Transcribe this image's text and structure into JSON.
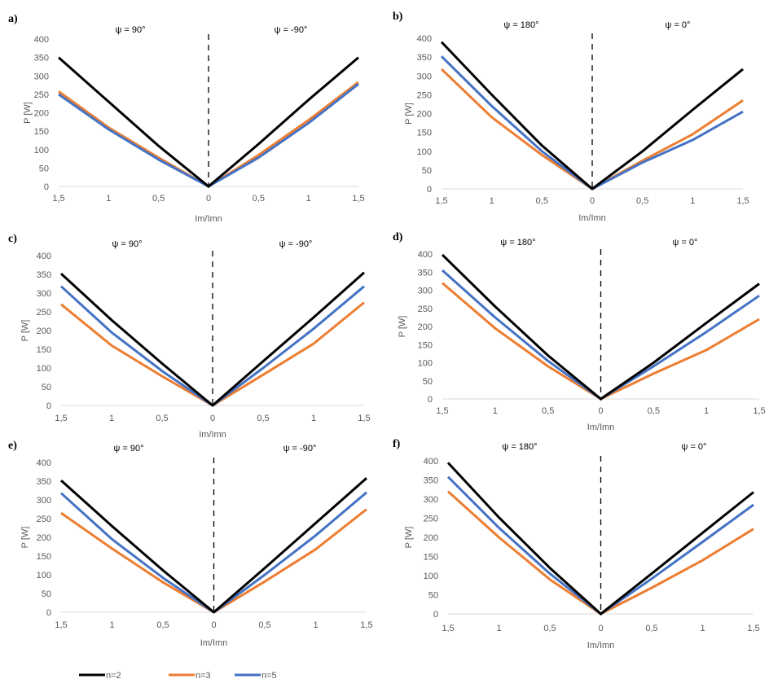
{
  "colors": {
    "n2": "#000000",
    "n3": "#ED7D31",
    "n5": "#4472C4",
    "axis": "#d9d9d9",
    "text": "#595959"
  },
  "legend": [
    {
      "name": "n=2",
      "color": "#000000"
    },
    {
      "name": "n=3",
      "color": "#ED7D31"
    },
    {
      "name": "n=5",
      "color": "#4472C4"
    }
  ],
  "chart_data": [
    {
      "type": "line",
      "panel": "a)",
      "psi_left": "ψ = 90°",
      "psi_right": "ψ = -90°",
      "x": [
        "1,5",
        "1",
        "0,5",
        "0",
        "0,5",
        "1",
        "1,5"
      ],
      "ylabel": "P [W]",
      "xlabel": "Im/Imn",
      "yticks": [
        "0",
        "50",
        "100",
        "150",
        "200",
        "250",
        "300",
        "350",
        "400"
      ],
      "ylim": [
        0,
        400
      ],
      "series": [
        {
          "name": "n=2",
          "values": [
            350,
            230,
            110,
            0,
            115,
            235,
            350
          ]
        },
        {
          "name": "n=3",
          "values": [
            258,
            160,
            78,
            0,
            85,
            180,
            283
          ]
        },
        {
          "name": "n=5",
          "values": [
            250,
            155,
            73,
            0,
            78,
            172,
            278
          ]
        }
      ]
    },
    {
      "type": "line",
      "panel": "b)",
      "psi_left": "ψ = 180°",
      "psi_right": "ψ = 0°",
      "x": [
        "1,5",
        "1",
        "0,5",
        "0",
        "0,5",
        "1",
        "1,5"
      ],
      "ylabel": "P [W]",
      "xlabel": "Im/Imn",
      "yticks": [
        "0",
        "50",
        "100",
        "150",
        "200",
        "250",
        "300",
        "350",
        "400"
      ],
      "ylim": [
        0,
        400
      ],
      "series": [
        {
          "name": "n=2",
          "values": [
            390,
            250,
            115,
            0,
            100,
            210,
            318
          ]
        },
        {
          "name": "n=3",
          "values": [
            318,
            190,
            90,
            0,
            75,
            145,
            235
          ]
        },
        {
          "name": "n=5",
          "values": [
            352,
            220,
            100,
            0,
            70,
            130,
            205
          ]
        }
      ]
    },
    {
      "type": "line",
      "panel": "c)",
      "psi_left": "ψ = 90°",
      "psi_right": "ψ = -90°",
      "x": [
        "1,5",
        "1",
        "0,5",
        "0",
        "0,5",
        "1",
        "1,5"
      ],
      "ylabel": "P [W]",
      "xlabel": "Im/Imn",
      "yticks": [
        "0",
        "50",
        "100",
        "150",
        "200",
        "250",
        "300",
        "350",
        "400"
      ],
      "ylim": [
        0,
        400
      ],
      "series": [
        {
          "name": "n=2",
          "values": [
            352,
            228,
            112,
            0,
            118,
            235,
            355
          ]
        },
        {
          "name": "n=3",
          "values": [
            270,
            160,
            78,
            0,
            82,
            165,
            275
          ]
        },
        {
          "name": "n=5",
          "values": [
            318,
            195,
            92,
            0,
            100,
            205,
            318
          ]
        }
      ]
    },
    {
      "type": "line",
      "panel": "d)",
      "psi_left": "ψ = 180°",
      "psi_right": "ψ = 0°",
      "x": [
        "1,5",
        "1",
        "0,5",
        "0",
        "0,5",
        "1",
        "1,5"
      ],
      "ylabel": "P [W]",
      "xlabel": "Im/Imn",
      "yticks": [
        "0",
        "50",
        "100",
        "150",
        "200",
        "250",
        "300",
        "350",
        "400"
      ],
      "ylim": [
        0,
        400
      ],
      "series": [
        {
          "name": "n=2",
          "values": [
            398,
            255,
            120,
            0,
            100,
            210,
            318
          ]
        },
        {
          "name": "n=3",
          "values": [
            320,
            195,
            90,
            0,
            70,
            135,
            220
          ]
        },
        {
          "name": "n=5",
          "values": [
            355,
            225,
            105,
            0,
            90,
            185,
            285
          ]
        }
      ]
    },
    {
      "type": "line",
      "panel": "e)",
      "psi_left": "ψ = 90°",
      "psi_right": "ψ = -90°",
      "x": [
        "1,5",
        "1",
        "0,5",
        "0",
        "0,5",
        "1",
        "1,5"
      ],
      "ylabel": "P [W]",
      "xlabel": "Im/Imn",
      "yticks": [
        "0",
        "50",
        "100",
        "150",
        "200",
        "250",
        "300",
        "350",
        "400"
      ],
      "ylim": [
        0,
        400
      ],
      "series": [
        {
          "name": "n=2",
          "values": [
            352,
            230,
            112,
            0,
            118,
            238,
            358
          ]
        },
        {
          "name": "n=3",
          "values": [
            265,
            170,
            80,
            0,
            82,
            168,
            275
          ]
        },
        {
          "name": "n=5",
          "values": [
            318,
            195,
            92,
            0,
            100,
            205,
            320
          ]
        }
      ]
    },
    {
      "type": "line",
      "panel": "f)",
      "psi_left": "ψ = 180°",
      "psi_right": "ψ = 0°",
      "x": [
        "1,5",
        "1",
        "0,5",
        "0",
        "0,5",
        "1",
        "1,5"
      ],
      "ylabel": "P [W]",
      "xlabel": "Im/Imn",
      "yticks": [
        "0",
        "50",
        "100",
        "150",
        "200",
        "250",
        "300",
        "350",
        "400"
      ],
      "ylim": [
        0,
        400
      ],
      "series": [
        {
          "name": "n=2",
          "values": [
            395,
            252,
            120,
            0,
            105,
            212,
            318
          ]
        },
        {
          "name": "n=3",
          "values": [
            320,
            200,
            90,
            0,
            68,
            140,
            222
          ]
        },
        {
          "name": "n=5",
          "values": [
            358,
            225,
            105,
            0,
            92,
            188,
            285
          ]
        }
      ]
    }
  ]
}
